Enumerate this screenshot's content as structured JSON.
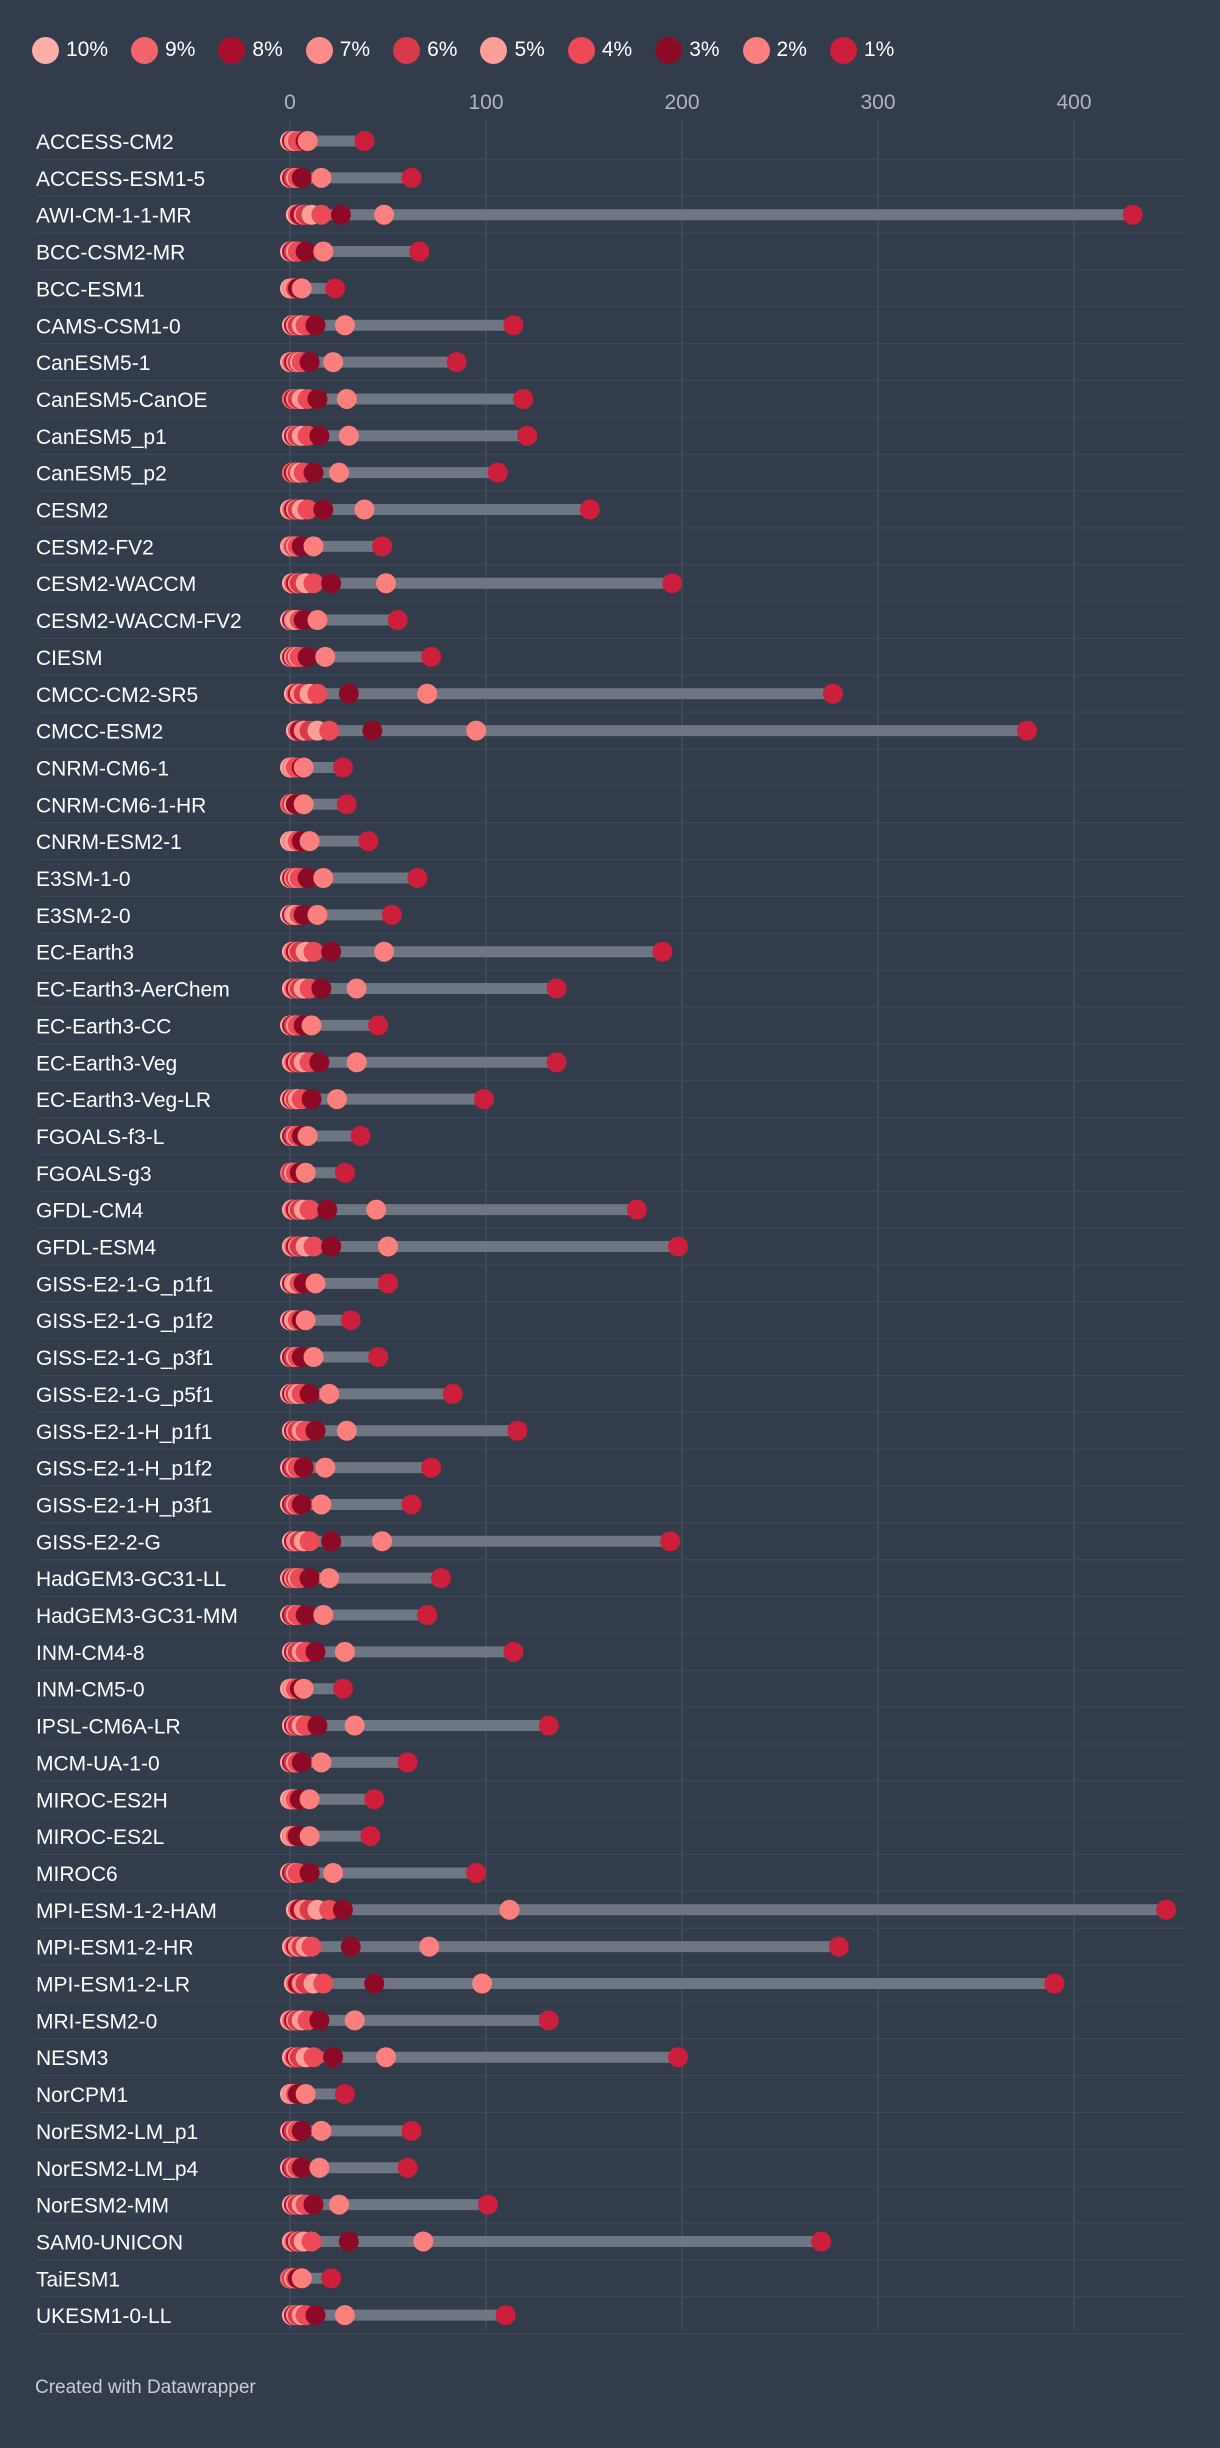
{
  "chart_data": {
    "type": "dot-range",
    "title": "",
    "xlabel": "",
    "ylabel": "",
    "xlim": [
      0,
      460
    ],
    "x_ticks": [
      0,
      100,
      200,
      300,
      400
    ],
    "grid": true,
    "legend_position": "top",
    "series": [
      {
        "name": "10%",
        "color": "#fdaea8"
      },
      {
        "name": "9%",
        "color": "#f2636b"
      },
      {
        "name": "8%",
        "color": "#a9102e"
      },
      {
        "name": "7%",
        "color": "#fc8c87"
      },
      {
        "name": "6%",
        "color": "#d83a4c"
      },
      {
        "name": "5%",
        "color": "#fd9e98"
      },
      {
        "name": "4%",
        "color": "#ec4a57"
      },
      {
        "name": "3%",
        "color": "#8d0a26"
      },
      {
        "name": "2%",
        "color": "#fb807d"
      },
      {
        "name": "1%",
        "color": "#cd1e3c"
      }
    ],
    "categories": [
      "ACCESS-CM2",
      "ACCESS-ESM1-5",
      "AWI-CM-1-1-MR",
      "BCC-CSM2-MR",
      "BCC-ESM1",
      "CAMS-CSM1-0",
      "CanESM5-1",
      "CanESM5-CanOE",
      "CanESM5_p1",
      "CanESM5_p2",
      "CESM2",
      "CESM2-FV2",
      "CESM2-WACCM",
      "CESM2-WACCM-FV2",
      "CIESM",
      "CMCC-CM2-SR5",
      "CMCC-ESM2",
      "CNRM-CM6-1",
      "CNRM-CM6-1-HR",
      "CNRM-ESM2-1",
      "E3SM-1-0",
      "E3SM-2-0",
      "EC-Earth3",
      "EC-Earth3-AerChem",
      "EC-Earth3-CC",
      "EC-Earth3-Veg",
      "EC-Earth3-Veg-LR",
      "FGOALS-f3-L",
      "FGOALS-g3",
      "GFDL-CM4",
      "GFDL-ESM4",
      "GISS-E2-1-G_p1f1",
      "GISS-E2-1-G_p1f2",
      "GISS-E2-1-G_p3f1",
      "GISS-E2-1-G_p5f1",
      "GISS-E2-1-H_p1f1",
      "GISS-E2-1-H_p1f2",
      "GISS-E2-1-H_p3f1",
      "GISS-E2-2-G",
      "HadGEM3-GC31-LL",
      "HadGEM3-GC31-MM",
      "INM-CM4-8",
      "INM-CM5-0",
      "IPSL-CM6A-LR",
      "MCM-UA-1-0",
      "MIROC-ES2H",
      "MIROC-ES2L",
      "MIROC6",
      "MPI-ESM-1-2-HAM",
      "MPI-ESM1-2-HR",
      "MPI-ESM1-2-LR",
      "MRI-ESM2-0",
      "NESM3",
      "NorCPM1",
      "NorESM2-LM_p1",
      "NorESM2-LM_p4",
      "NorESM2-MM",
      "SAM0-UNICON",
      "TaiESM1",
      "UKESM1-0-LL"
    ],
    "values": [
      [
        0,
        1,
        1,
        2,
        3,
        3,
        4,
        8,
        9,
        38
      ],
      [
        0,
        1,
        1,
        2,
        2,
        3,
        4,
        6,
        16,
        62
      ],
      [
        3,
        4,
        5,
        7,
        8,
        11,
        16,
        26,
        48,
        430
      ],
      [
        0,
        1,
        1,
        2,
        2,
        3,
        4,
        8,
        17,
        66
      ],
      [
        0,
        1,
        1,
        1,
        2,
        2,
        3,
        4,
        6,
        23
      ],
      [
        1,
        2,
        2,
        3,
        4,
        6,
        8,
        13,
        28,
        114
      ],
      [
        0,
        1,
        2,
        3,
        4,
        5,
        6,
        10,
        22,
        85
      ],
      [
        1,
        1,
        2,
        3,
        4,
        6,
        9,
        14,
        29,
        119
      ],
      [
        1,
        2,
        2,
        3,
        4,
        6,
        9,
        15,
        30,
        121
      ],
      [
        1,
        1,
        2,
        3,
        4,
        5,
        7,
        12,
        25,
        106
      ],
      [
        0,
        1,
        2,
        3,
        4,
        6,
        9,
        17,
        38,
        153
      ],
      [
        0,
        1,
        1,
        1,
        2,
        3,
        4,
        6,
        12,
        47
      ],
      [
        1,
        2,
        3,
        4,
        5,
        8,
        12,
        21,
        49,
        195
      ],
      [
        0,
        1,
        1,
        2,
        3,
        3,
        5,
        7,
        14,
        55
      ],
      [
        0,
        1,
        1,
        2,
        3,
        4,
        5,
        9,
        18,
        72
      ],
      [
        2,
        3,
        4,
        5,
        7,
        10,
        14,
        30,
        70,
        277
      ],
      [
        3,
        4,
        5,
        7,
        10,
        14,
        20,
        42,
        95,
        376
      ],
      [
        0,
        1,
        1,
        1,
        2,
        2,
        3,
        6,
        7,
        27
      ],
      [
        0,
        0,
        1,
        1,
        1,
        2,
        3,
        3,
        7,
        29
      ],
      [
        0,
        1,
        1,
        1,
        2,
        2,
        4,
        6,
        10,
        40
      ],
      [
        0,
        1,
        1,
        2,
        3,
        4,
        5,
        9,
        17,
        65
      ],
      [
        0,
        1,
        1,
        2,
        3,
        3,
        5,
        7,
        14,
        52
      ],
      [
        1,
        2,
        3,
        4,
        5,
        8,
        12,
        21,
        48,
        190
      ],
      [
        1,
        2,
        3,
        4,
        5,
        7,
        10,
        16,
        34,
        136
      ],
      [
        0,
        1,
        1,
        2,
        2,
        3,
        4,
        7,
        11,
        45
      ],
      [
        1,
        2,
        3,
        4,
        5,
        7,
        10,
        15,
        34,
        136
      ],
      [
        0,
        1,
        1,
        2,
        3,
        4,
        6,
        11,
        24,
        99
      ],
      [
        0,
        1,
        1,
        2,
        2,
        3,
        4,
        6,
        9,
        36
      ],
      [
        0,
        0,
        1,
        1,
        1,
        2,
        3,
        5,
        8,
        28
      ],
      [
        1,
        2,
        3,
        4,
        5,
        7,
        10,
        19,
        44,
        177
      ],
      [
        1,
        2,
        3,
        4,
        5,
        8,
        12,
        21,
        50,
        198
      ],
      [
        0,
        1,
        1,
        2,
        3,
        3,
        5,
        7,
        13,
        50
      ],
      [
        0,
        1,
        1,
        2,
        2,
        2,
        4,
        6,
        8,
        31
      ],
      [
        0,
        1,
        1,
        2,
        2,
        3,
        4,
        6,
        12,
        45
      ],
      [
        0,
        1,
        1,
        2,
        3,
        4,
        6,
        10,
        20,
        83
      ],
      [
        1,
        2,
        2,
        3,
        4,
        6,
        8,
        13,
        29,
        116
      ],
      [
        0,
        1,
        1,
        2,
        2,
        3,
        4,
        7,
        18,
        72
      ],
      [
        0,
        1,
        1,
        2,
        2,
        3,
        4,
        6,
        16,
        62
      ],
      [
        1,
        2,
        2,
        3,
        5,
        7,
        10,
        21,
        47,
        194
      ],
      [
        0,
        1,
        1,
        2,
        3,
        4,
        5,
        10,
        20,
        77
      ],
      [
        0,
        1,
        1,
        2,
        2,
        3,
        4,
        8,
        17,
        70
      ],
      [
        1,
        2,
        2,
        3,
        4,
        6,
        8,
        13,
        28,
        114
      ],
      [
        0,
        1,
        1,
        1,
        2,
        2,
        3,
        5,
        7,
        27
      ],
      [
        1,
        2,
        2,
        3,
        4,
        6,
        8,
        14,
        33,
        132
      ],
      [
        0,
        1,
        1,
        2,
        2,
        3,
        4,
        6,
        16,
        60
      ],
      [
        0,
        1,
        1,
        1,
        2,
        2,
        3,
        5,
        10,
        43
      ],
      [
        0,
        1,
        1,
        1,
        2,
        2,
        3,
        4,
        10,
        41
      ],
      [
        0,
        1,
        1,
        2,
        2,
        3,
        4,
        10,
        22,
        95
      ],
      [
        3,
        4,
        5,
        7,
        10,
        14,
        20,
        27,
        112,
        447
      ],
      [
        1,
        2,
        3,
        4,
        6,
        8,
        11,
        31,
        71,
        280
      ],
      [
        2,
        3,
        4,
        6,
        8,
        12,
        17,
        43,
        98,
        390
      ],
      [
        0,
        1,
        2,
        3,
        4,
        6,
        9,
        15,
        33,
        132
      ],
      [
        1,
        2,
        3,
        4,
        5,
        8,
        12,
        22,
        49,
        198
      ],
      [
        0,
        1,
        1,
        1,
        2,
        2,
        3,
        4,
        8,
        28
      ],
      [
        0,
        1,
        1,
        2,
        2,
        3,
        4,
        6,
        16,
        62
      ],
      [
        0,
        1,
        1,
        2,
        2,
        3,
        4,
        6,
        15,
        60
      ],
      [
        1,
        2,
        2,
        3,
        4,
        6,
        8,
        12,
        25,
        101
      ],
      [
        1,
        2,
        3,
        4,
        5,
        7,
        11,
        30,
        68,
        271
      ],
      [
        0,
        0,
        1,
        1,
        1,
        2,
        3,
        4,
        6,
        21
      ],
      [
        1,
        2,
        2,
        3,
        4,
        6,
        8,
        13,
        28,
        110
      ]
    ]
  },
  "footer": {
    "credit": "Created with Datawrapper"
  }
}
